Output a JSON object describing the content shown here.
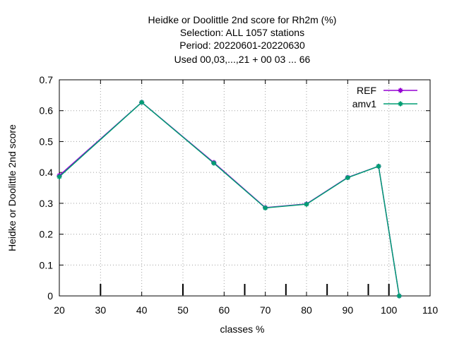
{
  "chart_data": {
    "type": "line",
    "title_lines": [
      "Heidke or Doolittle 2nd score  for Rh2m (%)",
      "Selection: ALL   1057 stations",
      "Period: 20220601-20220630",
      "Used  00,03,...,21  + 00 03 ... 66"
    ],
    "xlabel": "classes %",
    "ylabel": "Heidke or Doolittle 2nd score",
    "xlim": [
      20,
      110
    ],
    "ylim": [
      0,
      0.7
    ],
    "xticks": [
      "20",
      "30",
      "40",
      "50",
      "60",
      "70",
      "80",
      "90",
      "100",
      "110"
    ],
    "yticks": [
      "0",
      "0.1",
      "0.2",
      "0.3",
      "0.4",
      "0.5",
      "0.6",
      "0.7"
    ],
    "grid": true,
    "legend_position": "top-right",
    "class_markers": [
      30,
      50,
      65,
      75,
      85,
      95,
      100
    ],
    "series": [
      {
        "name": "REF",
        "color": "#9400d3",
        "x": [
          20,
          40,
          57.5,
          70,
          80,
          90,
          97.5,
          102.5
        ],
        "y": [
          0.39,
          0.627,
          0.432,
          0.286,
          0.298,
          0.384,
          0.42,
          0.0
        ]
      },
      {
        "name": "amv1",
        "color": "#009e73",
        "x": [
          20,
          40,
          57.5,
          70,
          80,
          90,
          97.5,
          102.5
        ],
        "y": [
          0.386,
          0.627,
          0.43,
          0.285,
          0.297,
          0.383,
          0.42,
          0.0
        ]
      }
    ]
  }
}
